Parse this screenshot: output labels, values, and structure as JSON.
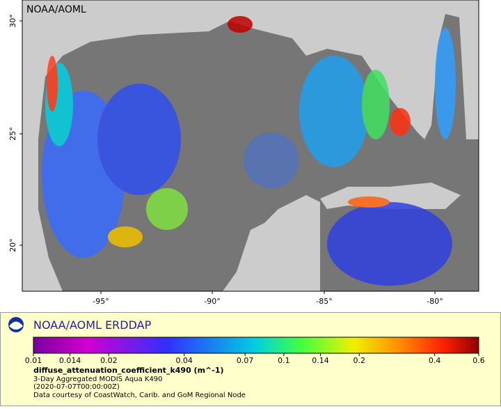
{
  "map": {
    "label": "NOAA/AOML",
    "lat_labels": [
      "30°",
      "25°",
      "20°"
    ],
    "lon_labels": [
      "-95°",
      "-90°",
      "-85°",
      "-80°"
    ]
  },
  "legend": {
    "title": "NOAA/AOML ERDDAP",
    "colorbar_ticks": [
      0.01,
      0.014,
      0.02,
      0.04,
      0.07,
      0.1,
      0.14,
      0.2,
      0.4,
      0.6
    ],
    "variable": "diffuse_attenuation_coefficient_k490 (m^-1)",
    "lines": [
      "3-Day Aggregated MODIS Aqua K490",
      "(2020-07-07T00:00:00Z)",
      "Data courtesy of CoastWatch, Carib. and GoM Regional Node"
    ]
  }
}
